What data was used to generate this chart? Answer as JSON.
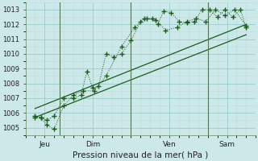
{
  "xlabel": "Pression niveau de la mer( hPa )",
  "bg_color": "#cce8e8",
  "grid_major_color": "#99cccc",
  "grid_minor_color": "#bbdddd",
  "line_color": "#1a5c1a",
  "ylim": [
    1004.5,
    1013.5
  ],
  "xlim": [
    0,
    12
  ],
  "yticks": [
    1005,
    1006,
    1007,
    1008,
    1009,
    1010,
    1011,
    1012,
    1013
  ],
  "day_labels": [
    "Jeu",
    "Dim",
    "Ven",
    "Sam"
  ],
  "day_positions": [
    1.0,
    3.5,
    7.5,
    10.5
  ],
  "day_vlines": [
    1.8,
    5.5,
    9.5
  ],
  "series1_x": [
    0.5,
    0.8,
    1.1,
    1.5,
    2.0,
    2.5,
    2.9,
    3.2,
    3.5,
    3.8,
    4.2,
    4.6,
    5.0,
    5.5,
    6.0,
    6.3,
    6.6,
    6.9,
    7.2,
    7.6,
    8.0,
    8.4,
    8.8,
    9.2,
    9.6,
    10.0,
    10.4,
    10.8,
    11.2,
    11.5
  ],
  "series1_y": [
    1005.8,
    1005.7,
    1005.5,
    1005.8,
    1007.0,
    1007.0,
    1007.2,
    1008.8,
    1007.7,
    1007.8,
    1010.0,
    1009.8,
    1010.0,
    1010.9,
    1012.2,
    1012.4,
    1012.4,
    1012.0,
    1012.9,
    1012.8,
    1012.2,
    1012.1,
    1012.2,
    1013.0,
    1013.0,
    1012.5,
    1013.0,
    1012.5,
    1013.0,
    1011.8
  ],
  "series2_x": [
    0.5,
    0.8,
    1.1,
    1.5,
    2.0,
    2.5,
    3.0,
    3.6,
    4.2,
    5.0,
    5.7,
    6.2,
    6.8,
    7.3,
    7.9,
    8.4,
    8.9,
    9.4,
    9.9,
    10.4,
    10.9,
    11.5
  ],
  "series2_y": [
    1005.7,
    1005.7,
    1005.2,
    1004.9,
    1006.5,
    1007.2,
    1007.5,
    1007.5,
    1008.5,
    1010.5,
    1011.8,
    1012.4,
    1012.3,
    1011.6,
    1011.8,
    1012.2,
    1012.4,
    1012.2,
    1013.0,
    1012.6,
    1013.0,
    1011.9
  ],
  "line1_x": [
    0.5,
    11.5
  ],
  "line1_y": [
    1005.7,
    1011.3
  ],
  "line2_x": [
    0.5,
    11.5
  ],
  "line2_y": [
    1006.3,
    1012.0
  ]
}
